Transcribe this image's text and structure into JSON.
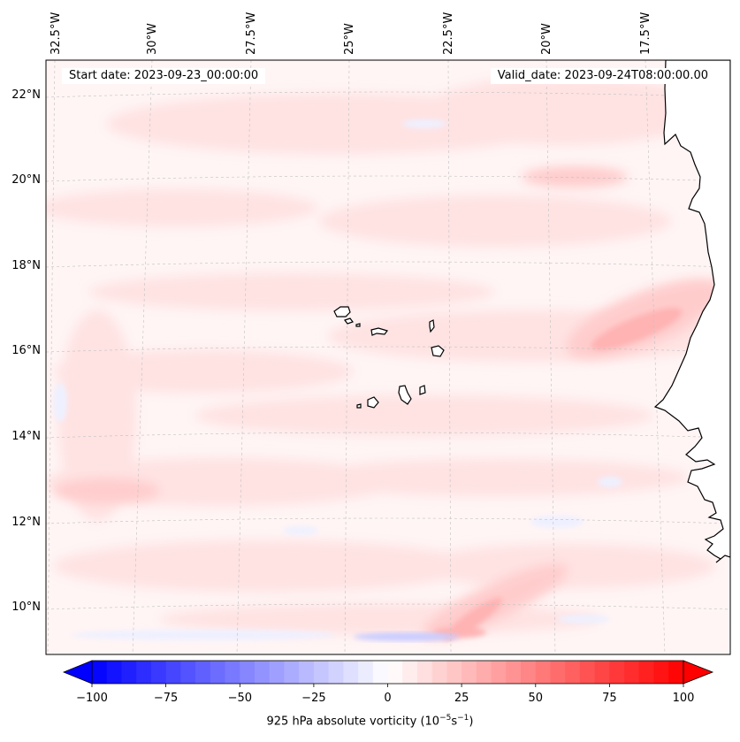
{
  "header": {
    "start_label": "Start date: 2023-09-23_00:00:00",
    "valid_label": "Valid_date: 2023-09-24T08:00:00.00"
  },
  "map": {
    "lon_labels": [
      "32.5°W",
      "30°W",
      "27.5°W",
      "25°W",
      "22.5°W",
      "20°W",
      "17.5°W"
    ],
    "lat_labels": [
      "22°N",
      "20°N",
      "18°N",
      "16°N",
      "14°N",
      "12°N",
      "10°N"
    ],
    "field_colors": {
      "background": "#fff5f5",
      "weak_positive": "#ffe3e3",
      "moderate_positive": "#ffcccc",
      "strong_positive": "#ffb3b3",
      "weak_negative": "#eef0ff",
      "moderate_negative": "#c9ccff"
    },
    "land_color": "#ffffff",
    "coast_color": "#000000",
    "grid": true
  },
  "colorbar": {
    "label_prefix": "925 hPa absolute vorticity (10",
    "label_exp1": "−5",
    "label_mid": "s",
    "label_exp2": "−1",
    "label_suffix": ")",
    "ticks": [
      "−100",
      "−75",
      "−50",
      "−25",
      "0",
      "25",
      "50",
      "75",
      "100"
    ],
    "range": [
      -100,
      100
    ],
    "levels": 40,
    "extend": "both",
    "colors": {
      "min": "#0000ff",
      "mid": "#ffffff",
      "max": "#ff0000"
    }
  }
}
